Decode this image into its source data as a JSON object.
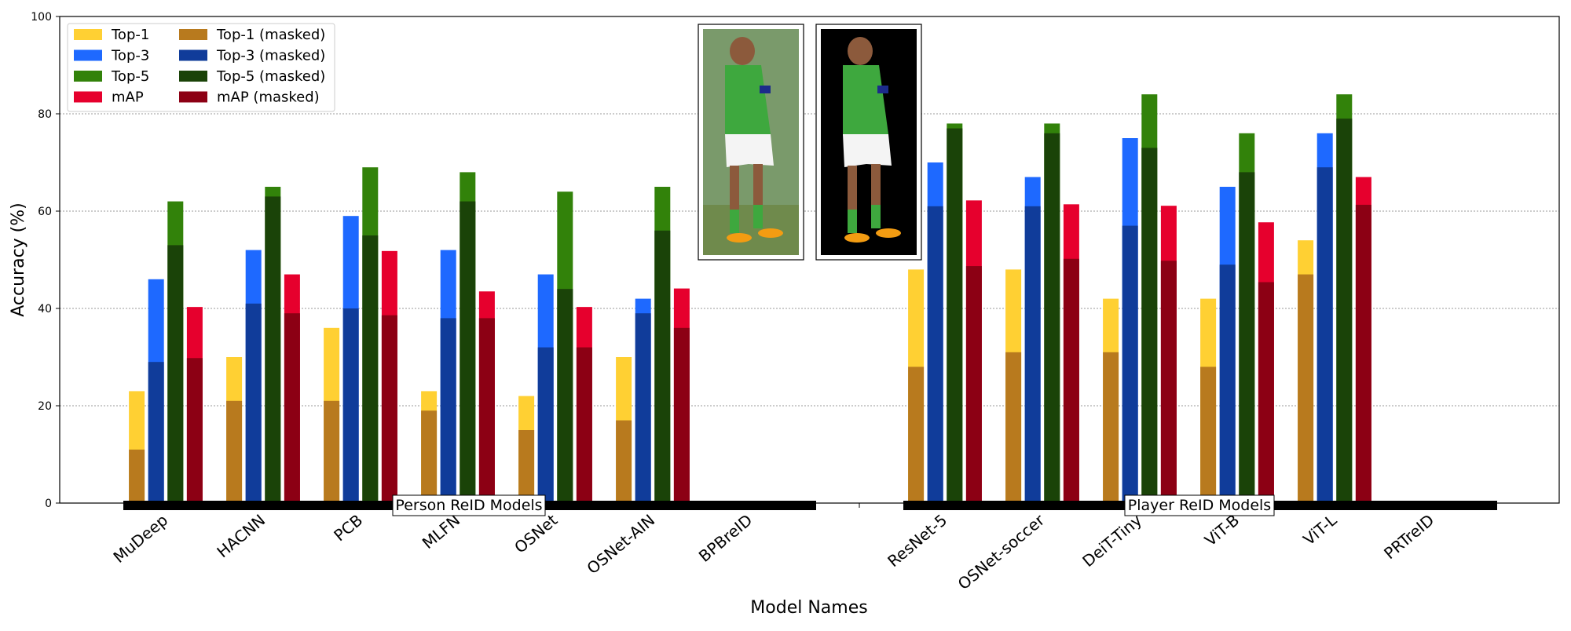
{
  "chart_data": {
    "type": "bar",
    "title": "",
    "xlabel": "Model Names",
    "ylabel": "Accuracy (%)",
    "ylim": [
      0,
      100
    ],
    "yticks": [
      0,
      20,
      40,
      60,
      80,
      100
    ],
    "grid": "horizontal dotted at 20, 40, 60, 80",
    "legend_placement": "top-left",
    "categories": [
      "MuDeep",
      "HACNN",
      "PCB",
      "MLFN",
      "OSNet",
      "OSNet-AIN",
      "BPBreID",
      "ResNet-5",
      "OSNet-soccer",
      "DeiT-Tiny",
      "ViT-B",
      "ViT-L",
      "PRTreID"
    ],
    "group_labels": [
      "Person ReID Models",
      "Player ReID Models"
    ],
    "series": [
      {
        "name": "Top-1",
        "color": "#FFD033",
        "values": [
          23,
          30,
          36,
          23,
          22,
          30,
          null,
          48,
          48,
          42,
          42,
          54,
          null
        ]
      },
      {
        "name": "Top-3",
        "color": "#1E69FF",
        "values": [
          46,
          52,
          59,
          52,
          47,
          42,
          null,
          70,
          67,
          75,
          65,
          76,
          null
        ]
      },
      {
        "name": "Top-5",
        "color": "#32820A",
        "values": [
          62,
          65,
          69,
          68,
          64,
          65,
          null,
          78,
          78,
          84,
          76,
          84,
          null
        ]
      },
      {
        "name": "mAP",
        "color": "#E6002D",
        "values": [
          40.3,
          47,
          51.8,
          43.5,
          40.3,
          44.1,
          null,
          62.2,
          61.4,
          61.1,
          57.7,
          67,
          null
        ]
      },
      {
        "name": "Top-1 (masked)",
        "color": "#B87A1E",
        "values": [
          11,
          21,
          21,
          19,
          15,
          17,
          null,
          28,
          31,
          31,
          28,
          47,
          null
        ]
      },
      {
        "name": "Top-3 (masked)",
        "color": "#103C9A",
        "values": [
          29,
          41,
          40,
          38,
          32,
          39,
          null,
          61,
          61,
          57,
          49,
          69,
          null
        ]
      },
      {
        "name": "Top-5 (masked)",
        "color": "#1A4308",
        "values": [
          53,
          63,
          55,
          62,
          44,
          56,
          null,
          77,
          76,
          73,
          68,
          79,
          null
        ]
      },
      {
        "name": "mAP (masked)",
        "color": "#8C0014",
        "values": [
          29.8,
          39,
          38.6,
          38,
          32,
          36,
          null,
          48.7,
          50.2,
          49.8,
          45.4,
          61.3,
          null
        ]
      }
    ]
  }
}
